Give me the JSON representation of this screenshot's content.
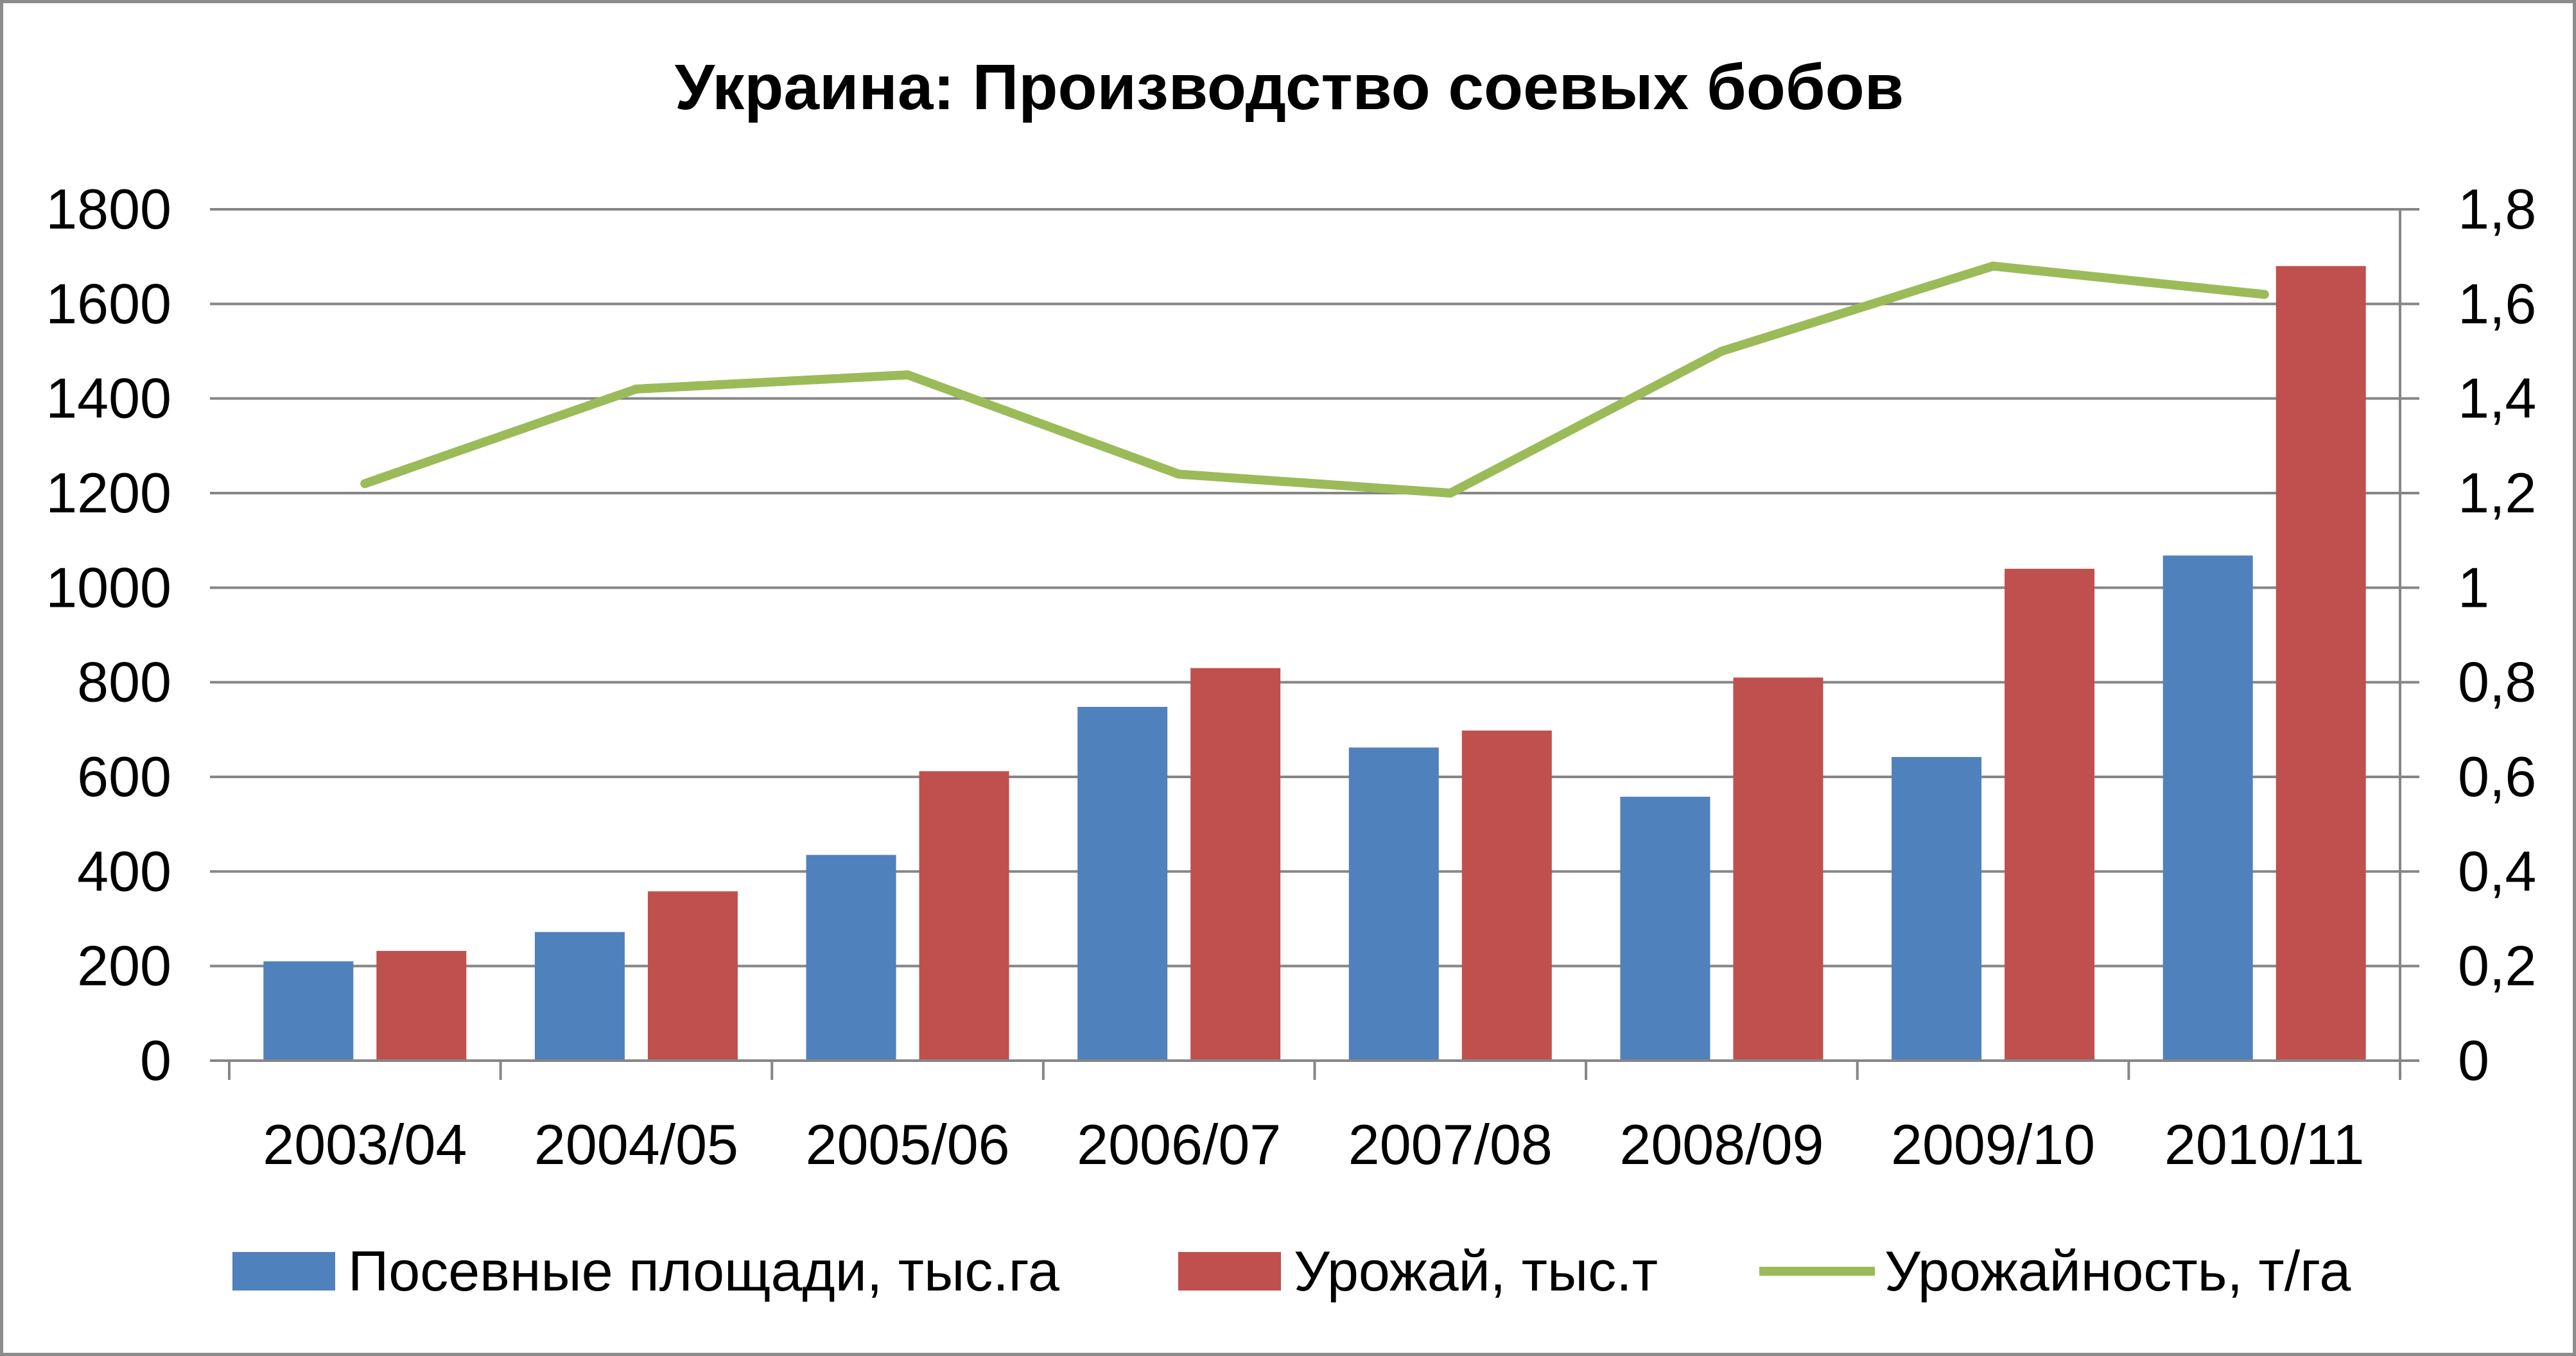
{
  "chart_data": {
    "type": "bar",
    "title": "Украина: Производство соевых бобов",
    "categories": [
      "2003/04",
      "2004/05",
      "2005/06",
      "2006/07",
      "2007/08",
      "2008/09",
      "2009/10",
      "2010/11"
    ],
    "series": [
      {
        "name": "Посевные площади, тыс.га",
        "type": "bar",
        "axis": "left",
        "color": "#4f81bd",
        "values": [
          210,
          272,
          435,
          748,
          662,
          558,
          642,
          1068
        ]
      },
      {
        "name": "Урожай, тыс.т",
        "type": "bar",
        "axis": "left",
        "color": "#c0504d",
        "values": [
          232,
          358,
          612,
          830,
          698,
          810,
          1040,
          1680
        ]
      },
      {
        "name": "Урожайность, т/га",
        "type": "line",
        "axis": "right",
        "color": "#9bbb59",
        "values": [
          1.22,
          1.42,
          1.45,
          1.24,
          1.2,
          1.5,
          1.68,
          1.62
        ]
      }
    ],
    "y_left": {
      "lim": [
        0,
        1800
      ],
      "ticks": [
        "0",
        "200",
        "400",
        "600",
        "800",
        "1000",
        "1200",
        "1400",
        "1600",
        "1800"
      ]
    },
    "y_right": {
      "lim": [
        0,
        1.8
      ],
      "ticks": [
        "0",
        "0,2",
        "0,4",
        "0,6",
        "0,8",
        "1",
        "1,2",
        "1,4",
        "1,6",
        "1,8"
      ]
    },
    "grid": true,
    "legend_position": "bottom"
  }
}
